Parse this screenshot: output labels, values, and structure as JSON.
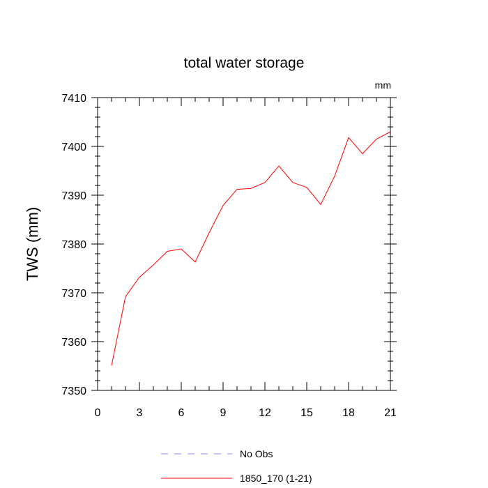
{
  "chart_data": {
    "type": "line",
    "title": "total water storage",
    "units_label": "mm",
    "xlabel": "",
    "ylabel": "TWS  (mm)",
    "xlim": [
      0,
      21
    ],
    "ylim": [
      7350,
      7410
    ],
    "x_ticks": [
      0,
      3,
      6,
      9,
      12,
      15,
      18,
      21
    ],
    "y_ticks": [
      7350,
      7360,
      7370,
      7380,
      7390,
      7400,
      7410
    ],
    "grid": false,
    "legend_position": "bottom",
    "series": [
      {
        "name": "No Obs",
        "color": "#8c8cff",
        "style": "dashed",
        "x": [],
        "y": []
      },
      {
        "name": "1850_170 (1-21)",
        "color": "#ff0000",
        "style": "solid",
        "x": [
          1,
          2,
          3,
          4,
          5,
          6,
          7,
          8,
          9,
          10,
          11,
          12,
          13,
          14,
          15,
          16,
          17,
          18,
          19,
          20,
          21
        ],
        "y": [
          7355.1,
          7369.2,
          7373.2,
          7375.7,
          7378.5,
          7379.0,
          7376.3,
          7382.3,
          7387.9,
          7391.2,
          7391.4,
          7392.6,
          7396.0,
          7392.6,
          7391.6,
          7388.1,
          7393.9,
          7401.8,
          7398.5,
          7401.5,
          7403.0
        ]
      }
    ]
  }
}
